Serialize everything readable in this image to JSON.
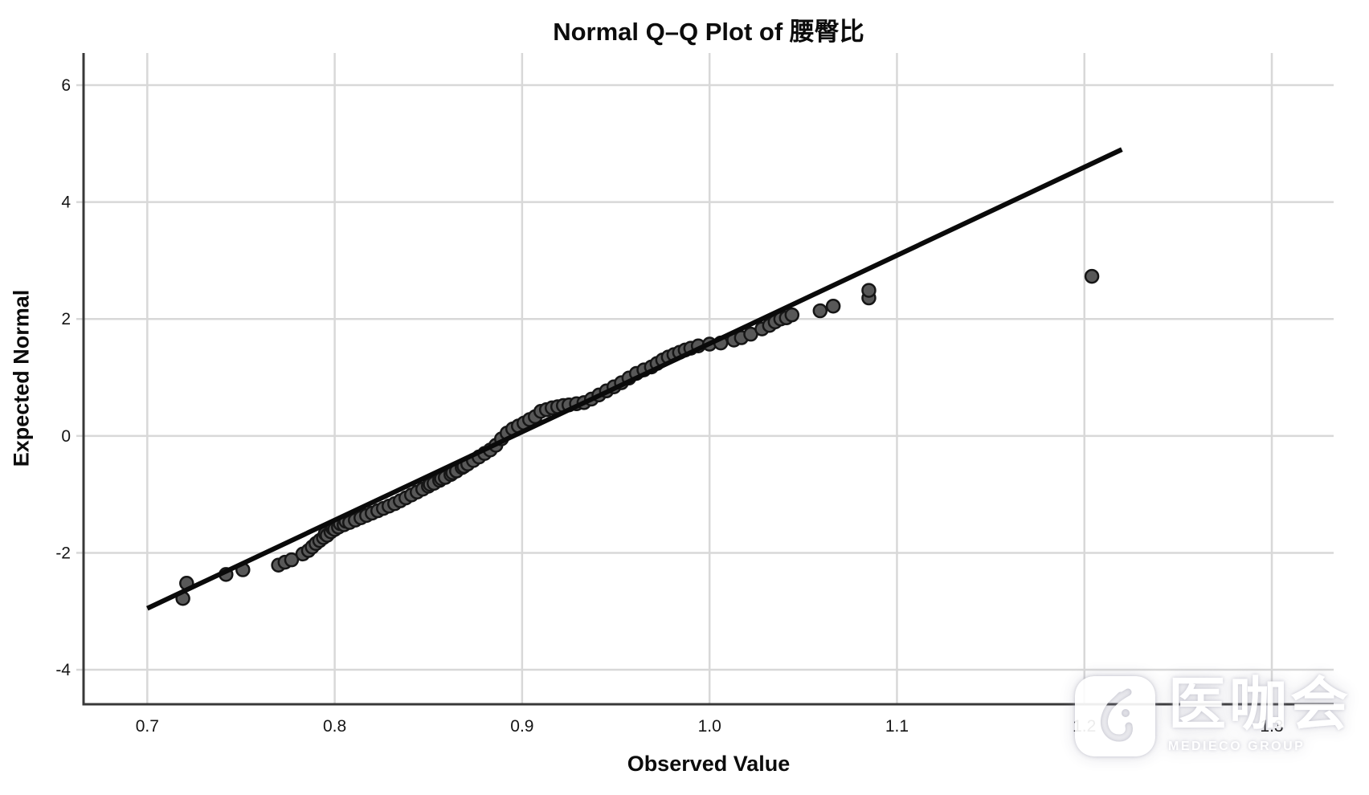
{
  "title": "Normal Q–Q Plot of 腰臀比",
  "axes": {
    "x_label": "Observed Value",
    "y_label": "Expected Normal"
  },
  "watermark": {
    "name_cjk": "医咖会",
    "name_latin": "MEDIECO GROUP",
    "logo": "medieco-logo"
  },
  "chart_data": {
    "type": "scatter",
    "title": "Normal Q–Q Plot of 腰臀比",
    "variable": "腰臀比",
    "xlabel": "Observed Value",
    "ylabel": "Expected Normal",
    "x_ticks": [
      0.7,
      0.8,
      0.9,
      1.0,
      1.1,
      1.2,
      1.3
    ],
    "y_ticks": [
      -4,
      -2,
      0,
      2,
      4,
      6
    ],
    "xlim": [
      0.666,
      1.333
    ],
    "ylim": [
      -4.59,
      6.55
    ],
    "grid": true,
    "legend": "none",
    "reference_line": {
      "x": [
        0.7,
        1.22
      ],
      "y": [
        -2.95,
        4.9
      ]
    },
    "points": [
      [
        0.719,
        -2.78
      ],
      [
        0.721,
        -2.52
      ],
      [
        0.742,
        -2.37
      ],
      [
        0.751,
        -2.29
      ],
      [
        0.77,
        -2.21
      ],
      [
        0.7735,
        -2.16
      ],
      [
        0.777,
        -2.12
      ],
      [
        0.783,
        -2.02
      ],
      [
        0.786,
        -1.96
      ],
      [
        0.788,
        -1.9
      ],
      [
        0.79,
        -1.84
      ],
      [
        0.792,
        -1.79
      ],
      [
        0.794,
        -1.74
      ],
      [
        0.795,
        -1.67
      ],
      [
        0.796,
        -1.7
      ],
      [
        0.798,
        -1.64
      ],
      [
        0.799,
        -1.58
      ],
      [
        0.8,
        -1.6
      ],
      [
        0.802,
        -1.56
      ],
      [
        0.803,
        -1.5
      ],
      [
        0.805,
        -1.52
      ],
      [
        0.806,
        -1.46
      ],
      [
        0.808,
        -1.48
      ],
      [
        0.811,
        -1.44
      ],
      [
        0.814,
        -1.4
      ],
      [
        0.817,
        -1.36
      ],
      [
        0.82,
        -1.32
      ],
      [
        0.823,
        -1.28
      ],
      [
        0.826,
        -1.24
      ],
      [
        0.829,
        -1.2
      ],
      [
        0.832,
        -1.16
      ],
      [
        0.835,
        -1.11
      ],
      [
        0.838,
        -1.06
      ],
      [
        0.841,
        -1.01
      ],
      [
        0.844,
        -0.96
      ],
      [
        0.847,
        -0.91
      ],
      [
        0.85,
        -0.86
      ],
      [
        0.851,
        -0.83
      ],
      [
        0.853,
        -0.81
      ],
      [
        0.856,
        -0.76
      ],
      [
        0.857,
        -0.73
      ],
      [
        0.859,
        -0.71
      ],
      [
        0.862,
        -0.66
      ],
      [
        0.863,
        -0.63
      ],
      [
        0.865,
        -0.6
      ],
      [
        0.868,
        -0.54
      ],
      [
        0.869,
        -0.52
      ],
      [
        0.871,
        -0.48
      ],
      [
        0.874,
        -0.42
      ],
      [
        0.877,
        -0.36
      ],
      [
        0.88,
        -0.3
      ],
      [
        0.883,
        -0.24
      ],
      [
        0.886,
        -0.16
      ],
      [
        0.889,
        -0.05
      ],
      [
        0.892,
        0.05
      ],
      [
        0.895,
        0.12
      ],
      [
        0.898,
        0.17
      ],
      [
        0.901,
        0.22
      ],
      [
        0.904,
        0.28
      ],
      [
        0.907,
        0.33
      ],
      [
        0.91,
        0.42
      ],
      [
        0.913,
        0.45
      ],
      [
        0.916,
        0.48
      ],
      [
        0.919,
        0.5
      ],
      [
        0.922,
        0.52
      ],
      [
        0.925,
        0.53
      ],
      [
        0.929,
        0.55
      ],
      [
        0.933,
        0.57
      ],
      [
        0.937,
        0.63
      ],
      [
        0.941,
        0.7
      ],
      [
        0.945,
        0.77
      ],
      [
        0.949,
        0.84
      ],
      [
        0.953,
        0.91
      ],
      [
        0.957,
        0.99
      ],
      [
        0.961,
        1.07
      ],
      [
        0.965,
        1.13
      ],
      [
        0.969,
        1.18
      ],
      [
        0.972,
        1.24
      ],
      [
        0.975,
        1.3
      ],
      [
        0.978,
        1.35
      ],
      [
        0.981,
        1.39
      ],
      [
        0.984,
        1.43
      ],
      [
        0.987,
        1.47
      ],
      [
        0.99,
        1.5
      ],
      [
        0.994,
        1.54
      ],
      [
        1.0,
        1.57
      ],
      [
        1.006,
        1.59
      ],
      [
        1.013,
        1.64
      ],
      [
        1.017,
        1.68
      ],
      [
        1.022,
        1.74
      ],
      [
        1.028,
        1.83
      ],
      [
        1.032,
        1.89
      ],
      [
        1.035,
        1.95
      ],
      [
        1.038,
        2.0
      ],
      [
        1.041,
        2.02
      ],
      [
        1.044,
        2.07
      ],
      [
        1.059,
        2.14
      ],
      [
        1.066,
        2.22
      ],
      [
        1.085,
        2.36
      ],
      [
        1.085,
        2.49
      ],
      [
        1.204,
        2.73
      ]
    ],
    "style": {
      "marker_fill": "#585858",
      "marker_stroke": "#161616",
      "marker_radius": 8,
      "line_color": "#0a0a0a",
      "line_width": 6,
      "grid_color": "#d8d8d8",
      "axis_color": "#383838"
    }
  }
}
